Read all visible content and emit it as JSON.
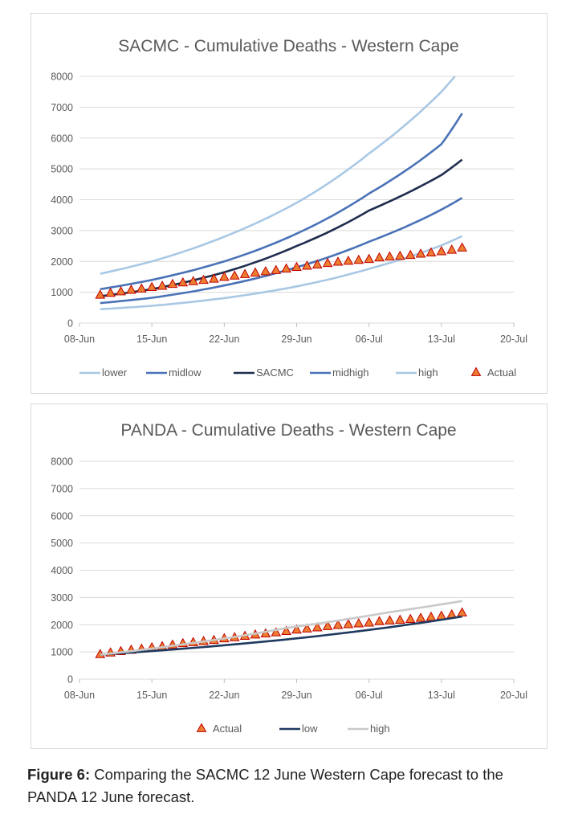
{
  "caption": {
    "label": "Figure 6:",
    "text": " Comparing the SACMC 12 June Western Cape forecast to the PANDA 12 June forecast."
  },
  "chart_data": [
    {
      "type": "line",
      "title": "SACMC - Cumulative Deaths - Western Cape",
      "xlabel": "",
      "ylabel": "",
      "x_ticks": [
        "08-Jun",
        "15-Jun",
        "22-Jun",
        "29-Jun",
        "06-Jul",
        "13-Jul",
        "20-Jul"
      ],
      "x_range_days": [
        0,
        42
      ],
      "ylim": [
        0,
        8000
      ],
      "y_ticks": [
        0,
        1000,
        2000,
        3000,
        4000,
        5000,
        6000,
        7000,
        8000
      ],
      "grid": "horizontal",
      "legend_position": "bottom",
      "series": [
        {
          "name": "lower",
          "color": "#a9c8e4",
          "style": "line",
          "x": [
            2,
            7,
            14,
            21,
            28,
            35,
            37
          ],
          "y": [
            450,
            560,
            810,
            1190,
            1760,
            2520,
            2820
          ]
        },
        {
          "name": "midlow",
          "color": "#4a72b7",
          "style": "line",
          "x": [
            2,
            7,
            14,
            21,
            28,
            35,
            37
          ],
          "y": [
            650,
            820,
            1220,
            1810,
            2640,
            3680,
            4060
          ]
        },
        {
          "name": "SACMC",
          "color": "#1f2d4e",
          "style": "line",
          "x": [
            2,
            7,
            14,
            21,
            28,
            35,
            37
          ],
          "y": [
            870,
            1100,
            1650,
            2500,
            3650,
            4800,
            5300
          ]
        },
        {
          "name": "midhigh",
          "color": "#4a72b7",
          "style": "line",
          "x": [
            2,
            7,
            14,
            21,
            28,
            35,
            37
          ],
          "y": [
            1100,
            1400,
            2000,
            2900,
            4200,
            5800,
            6800
          ]
        },
        {
          "name": "high",
          "color": "#a9c8e4",
          "style": "line",
          "x": [
            2,
            7,
            14,
            21,
            28,
            35,
            36.3
          ],
          "y": [
            1600,
            2000,
            2800,
            3900,
            5500,
            7500,
            8000
          ]
        },
        {
          "name": "Actual",
          "color": "#ed7d31",
          "style": "marker-triangle",
          "x": [
            2,
            3,
            4,
            5,
            6,
            7,
            8,
            9,
            10,
            11,
            12,
            13,
            14,
            15,
            16,
            17,
            18,
            19,
            20,
            21,
            22,
            23,
            24,
            25,
            26,
            27,
            28,
            29,
            30,
            31,
            32,
            33,
            34,
            35,
            36,
            37
          ],
          "y": [
            920,
            980,
            1030,
            1080,
            1120,
            1170,
            1210,
            1270,
            1320,
            1360,
            1400,
            1440,
            1500,
            1540,
            1590,
            1640,
            1680,
            1720,
            1770,
            1820,
            1860,
            1900,
            1950,
            1990,
            2020,
            2050,
            2080,
            2130,
            2160,
            2180,
            2210,
            2250,
            2290,
            2330,
            2380,
            2450
          ]
        }
      ]
    },
    {
      "type": "line",
      "title": "PANDA - Cumulative Deaths - Western Cape",
      "xlabel": "",
      "ylabel": "",
      "x_ticks": [
        "08-Jun",
        "15-Jun",
        "22-Jun",
        "29-Jun",
        "06-Jul",
        "13-Jul",
        "20-Jul"
      ],
      "x_range_days": [
        0,
        42
      ],
      "ylim": [
        0,
        8000
      ],
      "y_ticks": [
        0,
        1000,
        2000,
        3000,
        4000,
        5000,
        6000,
        7000,
        8000
      ],
      "grid": "horizontal",
      "legend_position": "bottom",
      "series": [
        {
          "name": "Actual",
          "color": "#ed7d31",
          "style": "marker-triangle",
          "x": [
            2,
            3,
            4,
            5,
            6,
            7,
            8,
            9,
            10,
            11,
            12,
            13,
            14,
            15,
            16,
            17,
            18,
            19,
            20,
            21,
            22,
            23,
            24,
            25,
            26,
            27,
            28,
            29,
            30,
            31,
            32,
            33,
            34,
            35,
            36,
            37
          ],
          "y": [
            920,
            980,
            1030,
            1080,
            1120,
            1170,
            1210,
            1270,
            1320,
            1360,
            1400,
            1440,
            1500,
            1540,
            1590,
            1640,
            1680,
            1720,
            1770,
            1820,
            1860,
            1900,
            1950,
            1990,
            2020,
            2050,
            2080,
            2130,
            2160,
            2180,
            2210,
            2250,
            2290,
            2330,
            2380,
            2450
          ]
        },
        {
          "name": "low",
          "color": "#1f3a5f",
          "style": "line",
          "x": [
            2,
            37
          ],
          "y": [
            900,
            2300
          ]
        },
        {
          "name": "high",
          "color": "#c9c9c9",
          "style": "line",
          "x": [
            2,
            10,
            20,
            30,
            37
          ],
          "y": [
            900,
            1280,
            1880,
            2460,
            2870
          ]
        }
      ]
    }
  ]
}
